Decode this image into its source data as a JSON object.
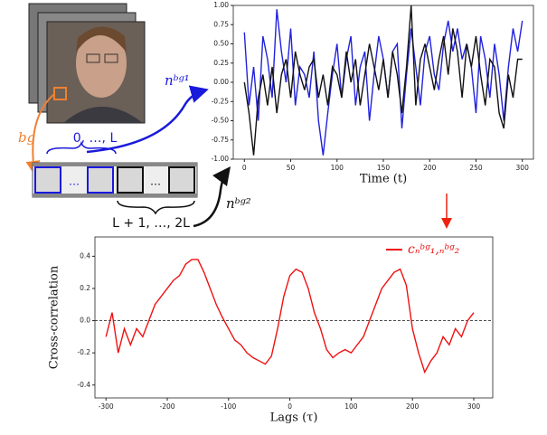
{
  "chart_data": [
    {
      "type": "line",
      "xlabel": "Time (t)",
      "x": [
        0,
        5,
        10,
        15,
        20,
        25,
        30,
        35,
        40,
        45,
        50,
        55,
        60,
        65,
        70,
        75,
        80,
        85,
        90,
        95,
        100,
        105,
        110,
        115,
        120,
        125,
        130,
        135,
        140,
        145,
        150,
        155,
        160,
        165,
        170,
        175,
        180,
        185,
        190,
        195,
        200,
        205,
        210,
        215,
        220,
        225,
        230,
        235,
        240,
        245,
        250,
        255,
        260,
        265,
        270,
        275,
        280,
        285,
        290,
        295,
        300
      ],
      "series": [
        {
          "color": "#2222dd",
          "values": [
            0.65,
            -0.3,
            0.2,
            -0.5,
            0.6,
            0.3,
            -0.2,
            0.95,
            0.4,
            0.0,
            0.7,
            -0.3,
            0.2,
            0.1,
            -0.2,
            0.4,
            -0.5,
            -0.95,
            -0.4,
            0.1,
            0.5,
            -0.2,
            0.3,
            0.6,
            -0.3,
            0.2,
            0.4,
            -0.5,
            0.1,
            0.6,
            0.3,
            -0.2,
            0.4,
            0.5,
            -0.6,
            0.1,
            0.7,
            0.2,
            -0.3,
            0.4,
            0.6,
            0.1,
            -0.1,
            0.5,
            0.8,
            0.4,
            0.7,
            0.3,
            0.5,
            0.2,
            -0.4,
            0.6,
            0.3,
            -0.2,
            0.5,
            0.1,
            -0.5,
            0.2,
            0.7,
            0.4,
            0.8
          ]
        },
        {
          "color": "#111111",
          "values": [
            0.0,
            -0.4,
            -0.95,
            -0.2,
            0.1,
            -0.3,
            0.2,
            -0.4,
            0.1,
            0.3,
            -0.2,
            0.4,
            0.1,
            -0.1,
            0.2,
            0.3,
            -0.2,
            0.1,
            -0.3,
            0.2,
            0.1,
            -0.2,
            0.4,
            0.0,
            0.3,
            -0.3,
            0.1,
            0.5,
            0.2,
            -0.1,
            0.3,
            -0.2,
            0.4,
            0.1,
            -0.4,
            0.2,
            1.0,
            -0.3,
            0.3,
            0.5,
            0.2,
            -0.1,
            0.3,
            0.6,
            0.1,
            0.7,
            0.4,
            -0.2,
            0.5,
            0.2,
            0.6,
            0.1,
            -0.3,
            0.3,
            0.2,
            -0.4,
            -0.6,
            0.1,
            -0.2,
            0.3,
            0.3
          ]
        }
      ],
      "xlim": [
        -12,
        312
      ],
      "ylim": [
        -1,
        1
      ],
      "xticks": [
        0,
        50,
        100,
        150,
        200,
        250,
        300
      ],
      "yticks": [
        {
          "value": -1,
          "label": "-1.00"
        },
        {
          "value": -0.75,
          "label": "-0.75"
        },
        {
          "value": -0.5,
          "label": "-0.50"
        },
        {
          "value": -0.25,
          "label": "-0.25"
        },
        {
          "value": 0,
          "label": "0.00"
        },
        {
          "value": 0.25,
          "label": "0.25"
        },
        {
          "value": 0.5,
          "label": "0.50"
        },
        {
          "value": 0.75,
          "label": "0.75"
        },
        {
          "value": 1,
          "label": "1.00"
        }
      ]
    },
    {
      "type": "line",
      "xlabel": "Lags (τ)",
      "ylabel": "Cross-correlation",
      "x": [
        -300,
        -290,
        -280,
        -270,
        -260,
        -250,
        -240,
        -230,
        -220,
        -210,
        -200,
        -190,
        -180,
        -170,
        -160,
        -150,
        -140,
        -130,
        -120,
        -110,
        -100,
        -90,
        -80,
        -70,
        -60,
        -50,
        -40,
        -30,
        -20,
        -10,
        0,
        10,
        20,
        30,
        40,
        50,
        60,
        70,
        80,
        90,
        100,
        110,
        120,
        130,
        140,
        150,
        160,
        170,
        180,
        190,
        200,
        210,
        220,
        230,
        240,
        250,
        260,
        270,
        280,
        290,
        300
      ],
      "series": [
        {
          "name": "cₙᵇᵍ₁,ₙᵇᵍ₂",
          "color": "#ee1111",
          "values": [
            -0.1,
            0.05,
            -0.2,
            -0.05,
            -0.15,
            -0.05,
            -0.1,
            0.0,
            0.1,
            0.15,
            0.2,
            0.25,
            0.28,
            0.35,
            0.38,
            0.38,
            0.3,
            0.2,
            0.1,
            0.02,
            -0.05,
            -0.12,
            -0.15,
            -0.2,
            -0.23,
            -0.25,
            -0.27,
            -0.22,
            -0.05,
            0.15,
            0.28,
            0.32,
            0.3,
            0.2,
            0.05,
            -0.05,
            -0.18,
            -0.23,
            -0.2,
            -0.18,
            -0.2,
            -0.15,
            -0.1,
            0.0,
            0.1,
            0.2,
            0.25,
            0.3,
            0.32,
            0.22,
            -0.05,
            -0.2,
            -0.32,
            -0.25,
            -0.2,
            -0.1,
            -0.15,
            -0.05,
            -0.1,
            0.0,
            0.05
          ]
        }
      ],
      "xlim": [
        -318,
        331
      ],
      "ylim": [
        -0.48,
        0.52
      ],
      "xticks": [
        -300,
        -200,
        -100,
        0,
        100,
        200,
        300
      ],
      "yticks": [
        -0.4,
        -0.2,
        {
          "value": 0,
          "label": "0.0"
        },
        0.2,
        0.4
      ],
      "hline": 0,
      "legend": "upper right"
    }
  ],
  "diagram": {
    "bg_label": "bg",
    "first_range": "0, …, L",
    "second_range": "L + 1, …, 2L",
    "signal_1": "nᵇᵍ¹",
    "signal_2": "nᵇᵍ²",
    "ellipsis_blue": "…",
    "ellipsis_black": "…"
  }
}
